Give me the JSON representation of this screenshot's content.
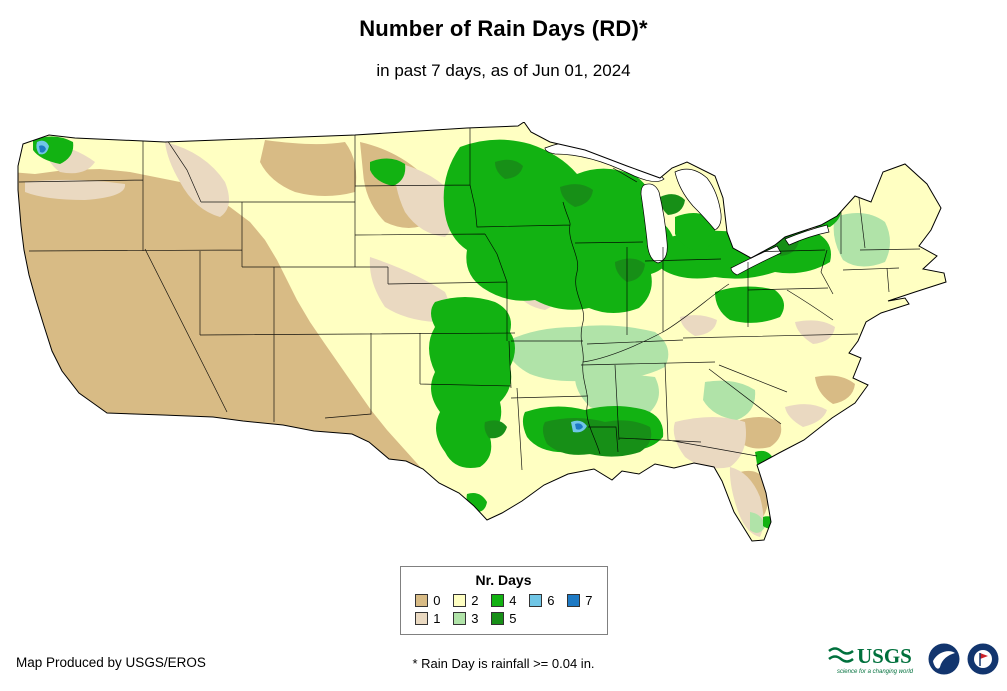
{
  "page": {
    "title": "Number of Rain Days (RD)*",
    "subtitle": "in past 7 days, as of Jun 01, 2024"
  },
  "legend": {
    "title": "Nr. Days",
    "entries": [
      {
        "label": "0",
        "color": "#d8bb85"
      },
      {
        "label": "1",
        "color": "#ead9c1"
      },
      {
        "label": "2",
        "color": "#ffffc2"
      },
      {
        "label": "3",
        "color": "#b0e3a8"
      },
      {
        "label": "4",
        "color": "#12b212"
      },
      {
        "label": "5",
        "color": "#178f17"
      },
      {
        "label": "6",
        "color": "#70c6e6"
      },
      {
        "label": "7",
        "color": "#1e7ac4"
      }
    ],
    "rows": [
      [
        0,
        2,
        4,
        6,
        7
      ],
      [
        1,
        3,
        5
      ]
    ]
  },
  "map": {
    "water_color": "#ffffff",
    "boundary_color": "#000000"
  },
  "footer": {
    "produced_by": "Map Produced by USGS/EROS",
    "note": "* Rain Day is rainfall >= 0.04 in.",
    "logos": {
      "usgs": {
        "text": "USGS",
        "tagline": "science for a changing world",
        "color": "#00703c"
      },
      "noaa": {
        "color": "#12356e"
      },
      "nws": {
        "color": "#12356e"
      }
    }
  }
}
